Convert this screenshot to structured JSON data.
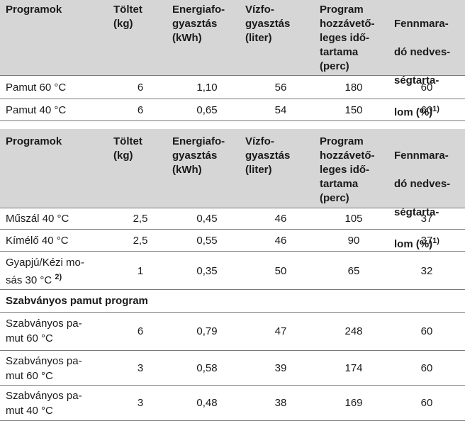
{
  "headers": {
    "programs": "Programok",
    "load": "Töltet\n(kg)",
    "energy": "Energiafo-\ngyasztás\n(kWh)",
    "water": "Vízfo-\ngyasztás\n(liter)",
    "duration": "Program\nhozzávető-\nleges idő-\ntartama\n(perc)",
    "moisture_l1": "Fennmara-",
    "moisture_l2": "dó nedves-",
    "moisture_l3": "ségtarta-",
    "moisture_l4": "lom (%)",
    "moisture_sup": "1)"
  },
  "table1": [
    {
      "program": "Pamut 60 °C",
      "load": "6",
      "energy": "1,10",
      "water": "56",
      "duration": "180",
      "moisture": "60"
    },
    {
      "program": "Pamut 40 °C",
      "load": "6",
      "energy": "0,65",
      "water": "54",
      "duration": "150",
      "moisture": "60"
    }
  ],
  "table2": [
    {
      "program": "Műszál 40 °C",
      "load": "2,5",
      "energy": "0,45",
      "water": "46",
      "duration": "105",
      "moisture": "37"
    },
    {
      "program": "Kímélő 40 °C",
      "load": "2,5",
      "energy": "0,55",
      "water": "46",
      "duration": "90",
      "moisture": "37"
    },
    {
      "program_l1": "Gyapjú/Kézi mo-",
      "program_l2": "sás 30 °C",
      "program_sup": "2)",
      "load": "1",
      "energy": "0,35",
      "water": "50",
      "duration": "65",
      "moisture": "32"
    }
  ],
  "section_title": "Szabványos pamut program",
  "table3": [
    {
      "program_l1": "Szabványos pa-",
      "program_l2": "mut 60 °C",
      "load": "6",
      "energy": "0,79",
      "water": "47",
      "duration": "248",
      "moisture": "60"
    },
    {
      "program_l1": "Szabványos pa-",
      "program_l2": "mut 60 °C",
      "load": "3",
      "energy": "0,58",
      "water": "39",
      "duration": "174",
      "moisture": "60"
    },
    {
      "program_l1": "Szabványos pa-",
      "program_l2": "mut 40 °C",
      "load": "3",
      "energy": "0,48",
      "water": "38",
      "duration": "169",
      "moisture": "60"
    }
  ]
}
